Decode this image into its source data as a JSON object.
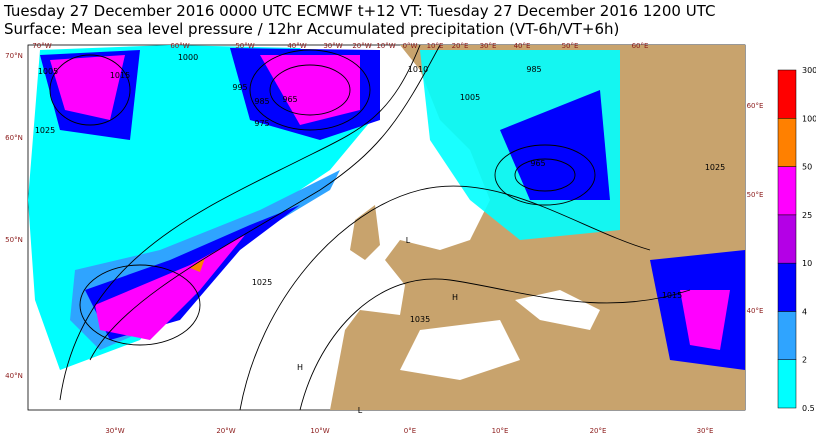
{
  "header": {
    "line1": "Tuesday 27 December 2016 0000 UTC  ECMWF  t+12  VT: Tuesday 27 December 2016 1200 UTC",
    "line2": "Surface: Mean sea level pressure / 12hr Accumulated precipitation (VT-6h/VT+6h)"
  },
  "legend": {
    "levels": [
      0.5,
      2,
      4,
      10,
      25,
      50,
      100,
      300
    ],
    "colors": [
      "#00ffff",
      "#2fa4ff",
      "#0000ff",
      "#b400e6",
      "#ff00ff",
      "#ff8000",
      "#ff0000"
    ]
  },
  "map": {
    "top_labels": [
      "70°W",
      "60°W",
      "50°W",
      "40°W",
      "30°W",
      "20°W",
      "10°W",
      "0°W",
      "10°E",
      "20°E",
      "30°E",
      "40°E",
      "50°E",
      "60°E"
    ],
    "bottom_labels": [
      "30°W",
      "20°W",
      "10°W",
      "0°E",
      "10°E",
      "20°E",
      "30°E"
    ],
    "left_labels": [
      "70°N",
      "60°N",
      "50°N",
      "40°N"
    ],
    "right_labels": [
      "60°E",
      "50°E",
      "40°E"
    ],
    "pressure_labels": [
      "1005",
      "1015",
      "1025",
      "1000",
      "995",
      "985",
      "965",
      "975",
      "1010",
      "1035",
      "1025",
      "965",
      "1005",
      "985",
      "1015",
      "1025",
      "H",
      "L",
      "H",
      "L"
    ]
  }
}
